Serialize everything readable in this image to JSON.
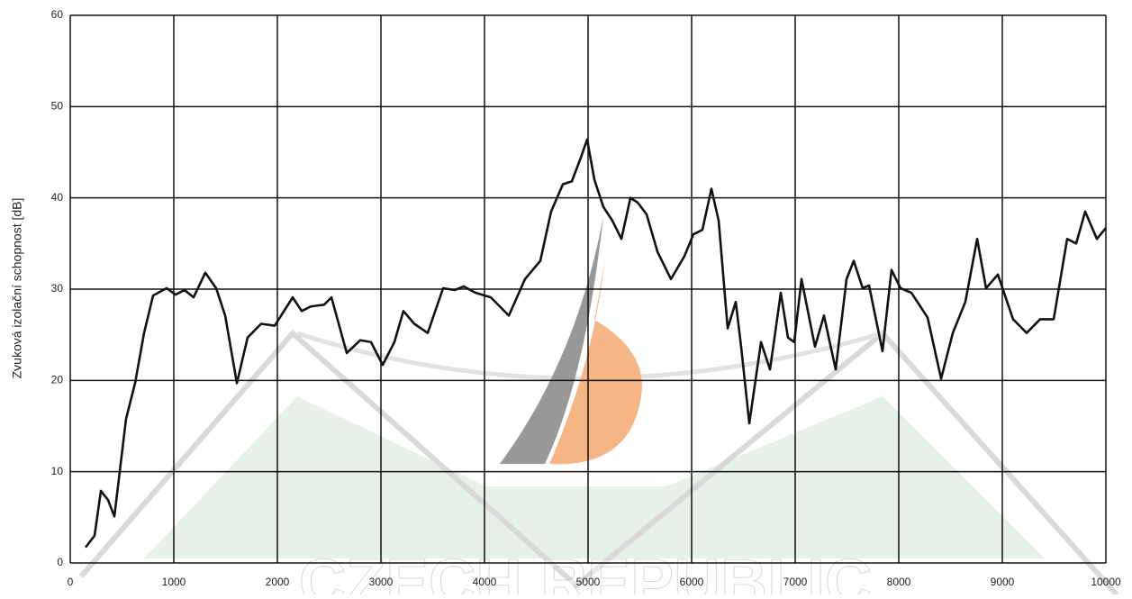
{
  "chart_data": {
    "type": "line",
    "ylabel": "Zvuková izolační schopnost [dB]",
    "watermark": "CZECH REPUBLIC",
    "x": [
      148,
      235,
      296,
      365,
      426,
      539,
      626,
      713,
      800,
      930,
      1017,
      1104,
      1191,
      1304,
      1409,
      1496,
      1609,
      1713,
      1843,
      1974,
      2148,
      2235,
      2322,
      2452,
      2522,
      2670,
      2800,
      2904,
      3017,
      3130,
      3217,
      3322,
      3452,
      3600,
      3713,
      3800,
      3913,
      4061,
      4235,
      4391,
      4539,
      4643,
      4757,
      4843,
      4930,
      4991,
      5061,
      5148,
      5235,
      5322,
      5409,
      5478,
      5565,
      5670,
      5800,
      5930,
      6017,
      6104,
      6191,
      6261,
      6348,
      6426,
      6478,
      6557,
      6670,
      6757,
      6861,
      6930,
      6991,
      7061,
      7191,
      7278,
      7391,
      7496,
      7565,
      7652,
      7713,
      7843,
      7930,
      8017,
      8122,
      8278,
      8409,
      8522,
      8643,
      8757,
      8843,
      8957,
      9104,
      9235,
      9365,
      9496,
      9626,
      9713,
      9800,
      9913,
      10000
    ],
    "series": [
      {
        "color": "#111111",
        "values": [
          1.7,
          3,
          7.9,
          6.9,
          5.1,
          15.8,
          19.7,
          25.2,
          29.3,
          30.1,
          29.4,
          29.9,
          29.1,
          31.8,
          30.1,
          27.1,
          19.7,
          24.7,
          26.2,
          26,
          29.1,
          27.6,
          28.1,
          28.3,
          29.1,
          23,
          24.4,
          24.2,
          21.7,
          24.2,
          27.6,
          26.2,
          25.2,
          30.1,
          29.9,
          30.3,
          29.6,
          29.1,
          27.1,
          31.1,
          33.1,
          38.5,
          41.5,
          41.8,
          44.4,
          46.4,
          42,
          39,
          37.5,
          35.5,
          40,
          39.5,
          38.2,
          34.1,
          31.1,
          33.6,
          36,
          36.5,
          41,
          37.5,
          25.7,
          28.6,
          23.7,
          15.3,
          24.2,
          21.2,
          29.6,
          24.7,
          24.2,
          31.1,
          23.7,
          27.1,
          21.2,
          31.1,
          33.1,
          30.1,
          30.4,
          23.2,
          32.1,
          30.1,
          29.6,
          26.9,
          20.2,
          25.2,
          28.6,
          35.5,
          30.1,
          31.6,
          26.7,
          25.2,
          26.7,
          26.7,
          35.5,
          35,
          38.5,
          35.5,
          36.7
        ]
      }
    ],
    "xlim": [
      0,
      10000
    ],
    "xticks": [
      0,
      1000,
      2000,
      3000,
      4000,
      5000,
      6000,
      7000,
      8000,
      9000,
      10000
    ],
    "ylim": [
      0,
      60
    ],
    "yticks": [
      0,
      10,
      20,
      30,
      40,
      50,
      60
    ],
    "grid": true
  }
}
